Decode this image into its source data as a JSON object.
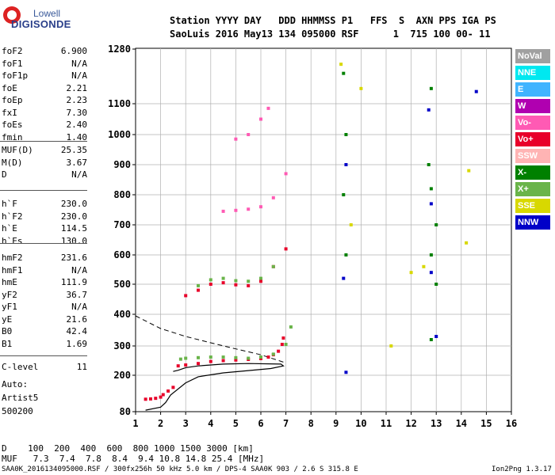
{
  "logo": {
    "line1": "Lowell",
    "line2": "DIGISONDE"
  },
  "header": {
    "line1": "Station YYYY DAY   DDD HHMMSS P1   FFS  S  AXN PPS IGA PS",
    "line2": "SaoLuis 2016 May13 134 095000 RSF      1  715 100 00- 11"
  },
  "params_group1": [
    {
      "k": "foF2",
      "v": "6.900"
    },
    {
      "k": "foF1",
      "v": "N/A"
    },
    {
      "k": "foF1p",
      "v": "N/A"
    },
    {
      "k": "foE",
      "v": "2.21"
    },
    {
      "k": "foEp",
      "v": "2.23"
    },
    {
      "k": "fxI",
      "v": "7.30"
    },
    {
      "k": "foEs",
      "v": "2.40"
    },
    {
      "k": "fmin",
      "v": "1.40"
    }
  ],
  "params_group2": [
    {
      "k": "MUF(D)",
      "v": "25.35"
    },
    {
      "k": "M(D)",
      "v": "3.67"
    },
    {
      "k": "D",
      "v": "N/A"
    }
  ],
  "params_group3": [
    {
      "k": "h`F",
      "v": "230.0"
    },
    {
      "k": "h`F2",
      "v": "230.0"
    },
    {
      "k": "h`E",
      "v": "114.5"
    },
    {
      "k": "h`Es",
      "v": "130.0"
    }
  ],
  "params_group4": [
    {
      "k": "hmF2",
      "v": "231.6"
    },
    {
      "k": "hmF1",
      "v": "N/A"
    },
    {
      "k": "hmE",
      "v": "111.9"
    },
    {
      "k": "yF2",
      "v": "36.7"
    },
    {
      "k": "yF1",
      "v": "N/A"
    },
    {
      "k": "yE",
      "v": "21.6"
    },
    {
      "k": "B0",
      "v": "42.4"
    },
    {
      "k": "B1",
      "v": "1.69"
    }
  ],
  "clevel": {
    "k": "C-level",
    "v": "11"
  },
  "auto": [
    "Auto:",
    "Artist5",
    "500200"
  ],
  "legend": [
    {
      "label": "NoVal",
      "color": "#a0a0a0"
    },
    {
      "label": "NNE",
      "color": "#00e8f0"
    },
    {
      "label": "E",
      "color": "#40b4ff"
    },
    {
      "label": "W",
      "color": "#b000b0"
    },
    {
      "label": "Vo-",
      "color": "#ff5ab4"
    },
    {
      "label": "Vo+",
      "color": "#e8002a"
    },
    {
      "label": "SSW",
      "color": "#ffb4b4"
    },
    {
      "label": "X-",
      "color": "#008000"
    },
    {
      "label": "X+",
      "color": "#6ab44a"
    },
    {
      "label": "SSE",
      "color": "#d8d800"
    },
    {
      "label": "NNW",
      "color": "#0000c8"
    }
  ],
  "bottom": {
    "row1": "D    100  200  400  600  800 1000 1500 3000 [km]",
    "row2": "MUF   7.3  7.4  7.8  8.4  9.4 10.8 14.8 25.4 [MHz]"
  },
  "footer": {
    "left": "SAA0K_2016134095000.RSF / 300fx256h 50 kHz 5.0 km / DPS-4 SAA0K 903 / 2.6 S 315.8 E",
    "right": "Ion2Png 1.3.17"
  },
  "chart_data": {
    "type": "scatter",
    "x_ticks": [
      1,
      2,
      3,
      4,
      5,
      6,
      7,
      8,
      9,
      10,
      11,
      12,
      13,
      14,
      15,
      16
    ],
    "y_ticks": [
      80,
      200,
      300,
      400,
      500,
      600,
      700,
      800,
      900,
      1000,
      1100,
      1280
    ],
    "xlim": [
      1,
      16
    ],
    "ylim": [
      80,
      1280
    ],
    "y_scale": "piecewise (80 and 1280 compressed ends)",
    "grid": true,
    "series": [
      {
        "name": "Vo+",
        "color": "#e8002a",
        "points": [
          [
            1.4,
            121
          ],
          [
            1.6,
            122
          ],
          [
            1.8,
            124
          ],
          [
            2.0,
            128
          ],
          [
            2.1,
            136
          ],
          [
            2.3,
            148
          ],
          [
            2.5,
            160
          ],
          [
            2.7,
            232
          ],
          [
            3.0,
            235
          ],
          [
            3.5,
            240
          ],
          [
            4.0,
            247
          ],
          [
            4.5,
            250
          ],
          [
            5.0,
            252
          ],
          [
            5.5,
            254
          ],
          [
            6.0,
            257
          ],
          [
            6.3,
            262
          ],
          [
            6.5,
            270
          ],
          [
            6.7,
            282
          ],
          [
            6.85,
            305
          ],
          [
            6.9,
            325
          ],
          [
            3.0,
            462
          ],
          [
            3.5,
            480
          ],
          [
            4.0,
            500
          ],
          [
            4.5,
            505
          ],
          [
            5.0,
            498
          ],
          [
            5.5,
            495
          ],
          [
            6.0,
            510
          ],
          [
            6.5,
            560
          ],
          [
            7.0,
            620
          ]
        ]
      },
      {
        "name": "X+",
        "color": "#6ab44a",
        "points": [
          [
            2.8,
            255
          ],
          [
            3.0,
            258
          ],
          [
            3.5,
            260
          ],
          [
            4.0,
            262
          ],
          [
            4.5,
            262
          ],
          [
            5.0,
            260
          ],
          [
            5.5,
            258
          ],
          [
            6.0,
            262
          ],
          [
            6.5,
            272
          ],
          [
            7.0,
            305
          ],
          [
            7.2,
            360
          ],
          [
            3.5,
            495
          ],
          [
            4.0,
            515
          ],
          [
            4.5,
            520
          ],
          [
            5.0,
            512
          ],
          [
            5.5,
            510
          ],
          [
            6.0,
            520
          ],
          [
            6.5,
            560
          ]
        ]
      },
      {
        "name": "Vo-",
        "color": "#ff5ab4",
        "points": [
          [
            4.5,
            745
          ],
          [
            5.0,
            748
          ],
          [
            5.5,
            752
          ],
          [
            6.0,
            760
          ],
          [
            6.5,
            790
          ],
          [
            7.0,
            870
          ],
          [
            5.0,
            985
          ],
          [
            5.5,
            1000
          ],
          [
            6.0,
            1050
          ],
          [
            6.3,
            1085
          ]
        ]
      },
      {
        "name": "X-",
        "color": "#008000",
        "points": [
          [
            9.3,
            1200
          ],
          [
            9.4,
            1000
          ],
          [
            9.3,
            800
          ],
          [
            9.4,
            600
          ],
          [
            12.8,
            1150
          ],
          [
            12.7,
            900
          ],
          [
            12.8,
            820
          ],
          [
            12.8,
            600
          ],
          [
            12.8,
            320
          ],
          [
            13.0,
            700
          ],
          [
            13.0,
            500
          ]
        ]
      },
      {
        "name": "NNW",
        "color": "#0000c8",
        "points": [
          [
            9.4,
            900
          ],
          [
            9.3,
            520
          ],
          [
            9.4,
            210
          ],
          [
            12.7,
            1080
          ],
          [
            12.8,
            770
          ],
          [
            12.8,
            540
          ],
          [
            13.0,
            330
          ],
          [
            14.6,
            1140
          ]
        ]
      },
      {
        "name": "SSE",
        "color": "#d8d800",
        "points": [
          [
            9.2,
            1230
          ],
          [
            9.6,
            700
          ],
          [
            10.0,
            1150
          ],
          [
            11.2,
            300
          ],
          [
            12.0,
            540
          ],
          [
            12.5,
            560
          ],
          [
            14.3,
            880
          ],
          [
            14.2,
            640
          ]
        ]
      }
    ],
    "profile_solid": [
      [
        1.4,
        85
      ],
      [
        2.0,
        95
      ],
      [
        2.2,
        110
      ],
      [
        2.4,
        135
      ],
      [
        3.0,
        175
      ],
      [
        3.5,
        195
      ],
      [
        4.5,
        208
      ],
      [
        5.5,
        216
      ],
      [
        6.4,
        223
      ],
      [
        6.9,
        232
      ],
      [
        6.8,
        238
      ],
      [
        5.5,
        240
      ],
      [
        4.5,
        238
      ],
      [
        3.5,
        232
      ],
      [
        3.0,
        226
      ],
      [
        2.7,
        217
      ],
      [
        2.5,
        213
      ]
    ],
    "profile_dashed": [
      [
        1.0,
        395
      ],
      [
        2.0,
        355
      ],
      [
        3.0,
        330
      ],
      [
        4.0,
        310
      ],
      [
        5.0,
        290
      ],
      [
        6.0,
        270
      ],
      [
        6.9,
        245
      ]
    ]
  }
}
